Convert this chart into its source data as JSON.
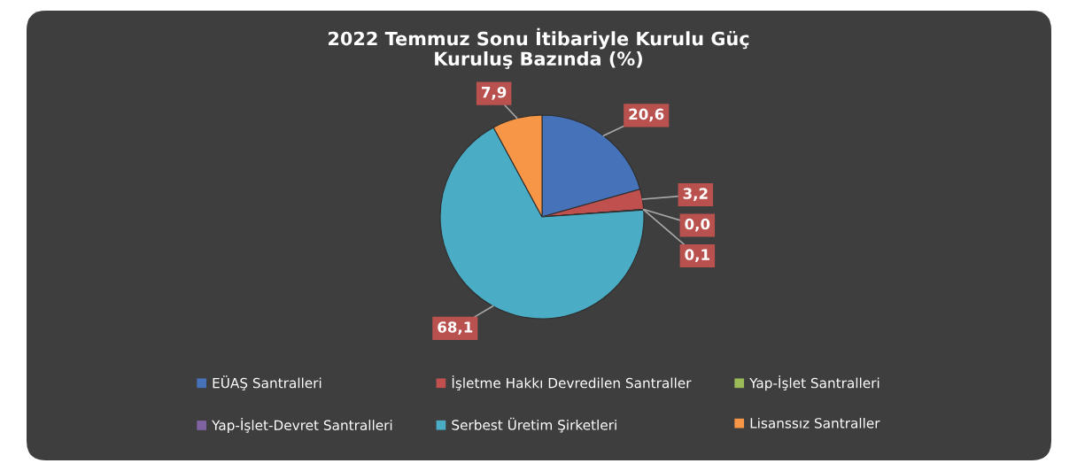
{
  "chart_data": {
    "type": "pie",
    "title": "2022 Temmuz Sonu İtibariyle Kurulu Güç\nKuruluş Bazında (%)",
    "categories": [
      "EÜAŞ Santralleri",
      "İşletme Hakkı Devredilen Santraller",
      "Yap-İşlet Santralleri",
      "Yap-İşlet-Devret Santralleri",
      "Serbest Üretim Şirketleri",
      "Lisanssız Santraller"
    ],
    "values": [
      20.6,
      3.2,
      0.0,
      0.1,
      68.1,
      7.9
    ],
    "colors": [
      "#4572b8",
      "#c0504d",
      "#9bbb59",
      "#8064a2",
      "#4bacc6",
      "#f79646"
    ],
    "value_labels": [
      "20,6",
      "3,2",
      "0,0",
      "0,1",
      "68,1",
      "7,9"
    ],
    "legend": "bottom"
  }
}
